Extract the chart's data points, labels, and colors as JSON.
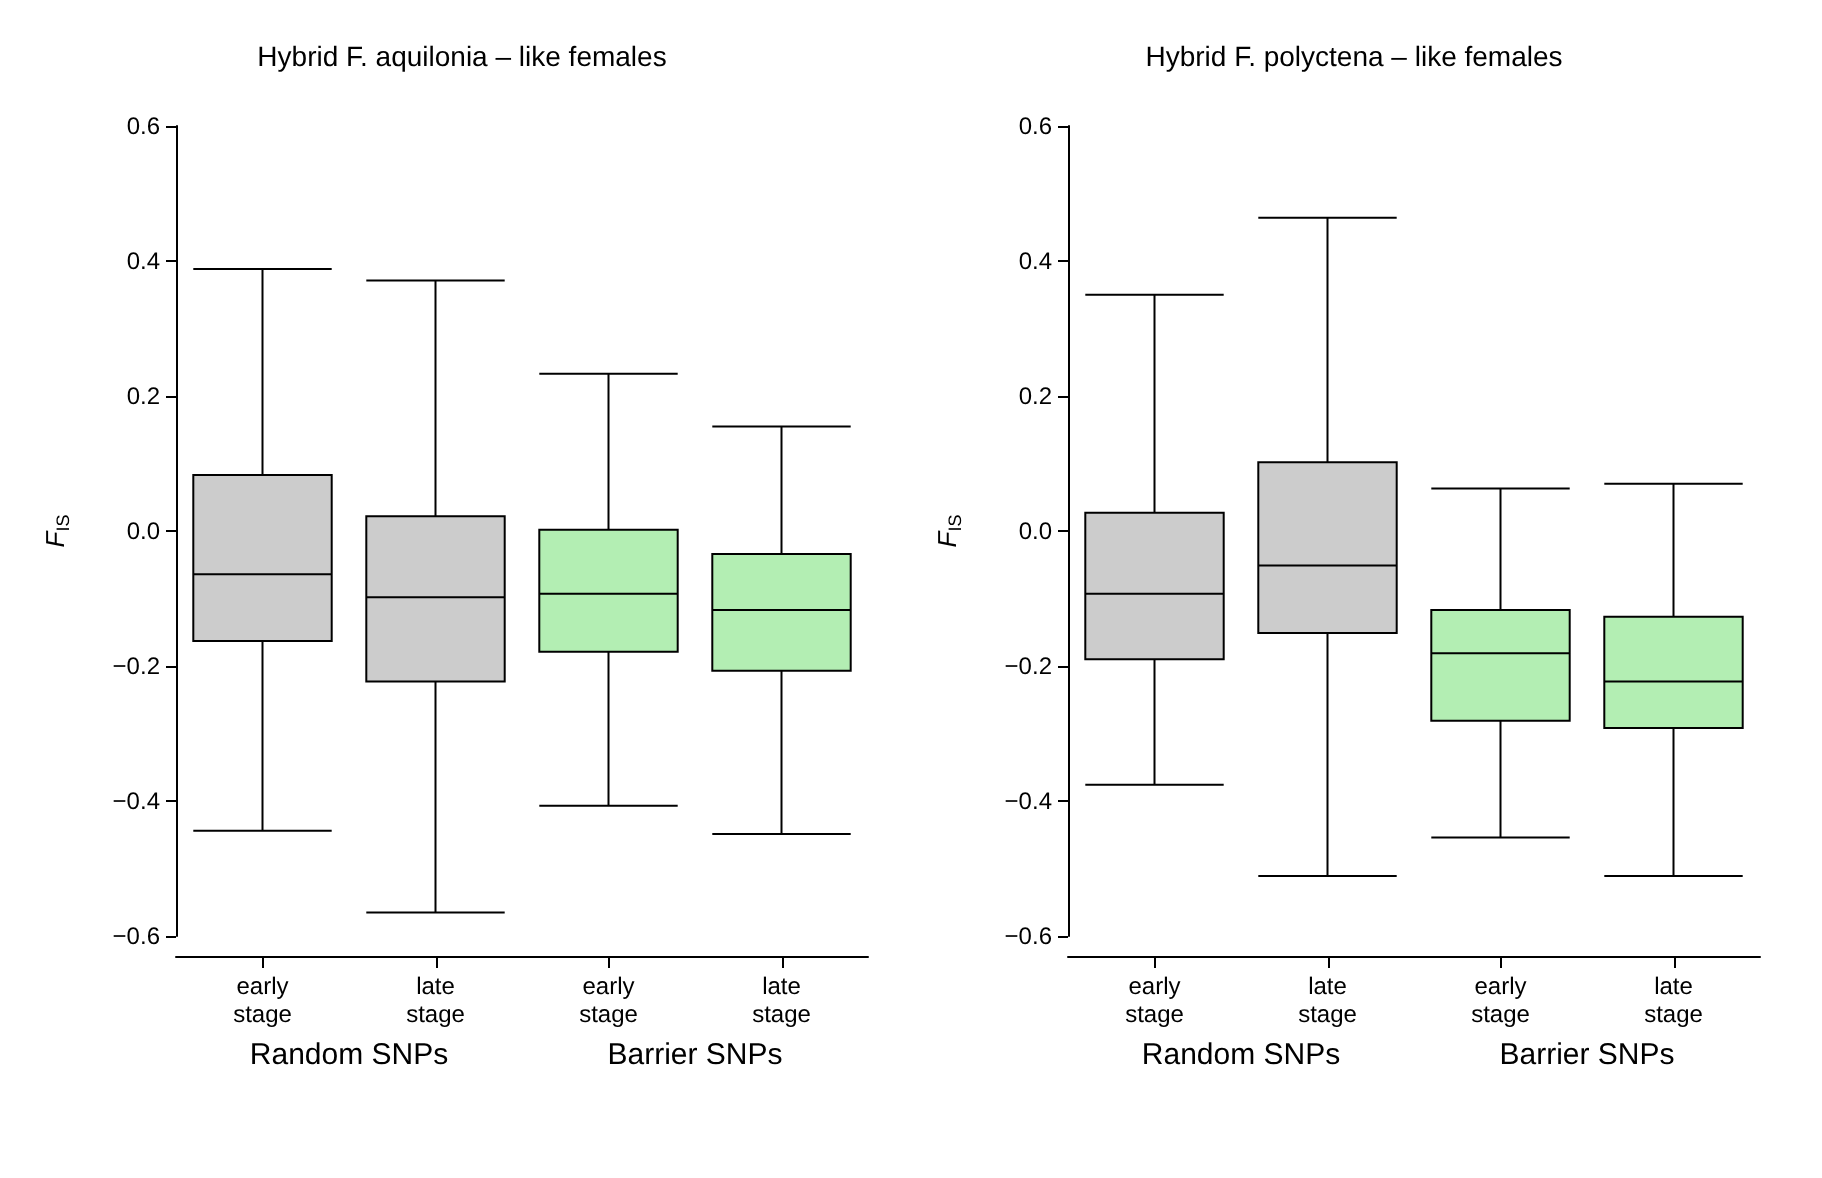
{
  "chart_data": [
    {
      "type": "box",
      "title": "Hybrid F. aquilonia – like females",
      "ylabel": "F$_{IS}$",
      "categories": [
        "early\nstage",
        "late\nstage",
        "early\nstage",
        "late\nstage"
      ],
      "ylim": [
        -0.6,
        0.6
      ],
      "yticks": [
        {
          "value": -0.6,
          "label": "−0.6"
        },
        {
          "value": -0.4,
          "label": "−0.4"
        },
        {
          "value": -0.2,
          "label": "−0.2"
        },
        {
          "value": 0,
          "label": "0.0"
        },
        {
          "value": 0.2,
          "label": "0.2"
        },
        {
          "value": 0.4,
          "label": "0.4"
        },
        {
          "value": 0.6,
          "label": "0.6"
        }
      ],
      "grid": false,
      "annotations": [
        "Random SNPs",
        "Barrier SNPs"
      ],
      "series": [
        {
          "color": "#cccccc",
          "boxes": [
            {
              "low": -0.444,
              "q1": -0.163,
              "median": -0.064,
              "q3": 0.083,
              "high": 0.388
            },
            {
              "low": -0.565,
              "q1": -0.223,
              "median": -0.098,
              "q3": 0.022,
              "high": 0.371
            },
            null,
            null
          ]
        },
        {
          "color": "#b3eeb3",
          "boxes": [
            null,
            null,
            {
              "low": -0.407,
              "q1": -0.179,
              "median": -0.093,
              "q3": 0.002,
              "high": 0.233
            },
            {
              "low": -0.449,
              "q1": -0.207,
              "median": -0.117,
              "q3": -0.034,
              "high": 0.155
            }
          ]
        }
      ]
    },
    {
      "type": "box",
      "title": "Hybrid F. polyctena – like females",
      "ylabel": "F$_{IS}$",
      "categories": [
        "early\nstage",
        "late\nstage",
        "early\nstage",
        "late\nstage"
      ],
      "ylim": [
        -0.6,
        0.6
      ],
      "yticks": [
        {
          "value": -0.6,
          "label": "−0.6"
        },
        {
          "value": -0.4,
          "label": "−0.4"
        },
        {
          "value": -0.2,
          "label": "−0.2"
        },
        {
          "value": 0,
          "label": "0.0"
        },
        {
          "value": 0.2,
          "label": "0.2"
        },
        {
          "value": 0.4,
          "label": "0.4"
        },
        {
          "value": 0.6,
          "label": "0.6"
        }
      ],
      "grid": false,
      "annotations": [
        "Random SNPs",
        "Barrier SNPs"
      ],
      "series": [
        {
          "color": "#cccccc",
          "boxes": [
            {
              "low": -0.376,
              "q1": -0.19,
              "median": -0.093,
              "q3": 0.027,
              "high": 0.35
            },
            {
              "low": -0.511,
              "q1": -0.151,
              "median": -0.051,
              "q3": 0.102,
              "high": 0.464
            },
            null,
            null
          ]
        },
        {
          "color": "#b3eeb3",
          "boxes": [
            null,
            null,
            {
              "low": -0.454,
              "q1": -0.281,
              "median": -0.181,
              "q3": -0.117,
              "high": 0.063
            },
            {
              "low": -0.511,
              "q1": -0.292,
              "median": -0.223,
              "q3": -0.127,
              "high": 0.07
            }
          ]
        }
      ]
    }
  ]
}
